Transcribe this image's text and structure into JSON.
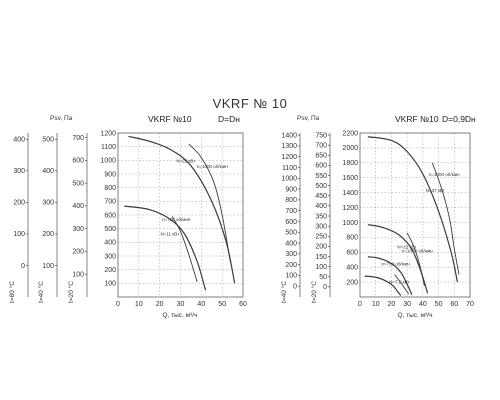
{
  "page": {
    "title": "VKRF № 10"
  },
  "chart_data": [
    {
      "type": "line",
      "header": "VKRF №10",
      "variant": "D=Dн",
      "xlabel": "Q, тыс. м³/ч",
      "xlim": [
        0,
        60
      ],
      "xticks": [
        0,
        10,
        20,
        30,
        40,
        50,
        60
      ],
      "ylim": [
        0,
        1200
      ],
      "ytick_step": 100,
      "pressure_axis_label": "Psv, Па",
      "y_axes": [
        {
          "label": "t=20 °C",
          "ticks": [
            "100",
            "200",
            "300",
            "400",
            "500",
            "600",
            "700"
          ]
        },
        {
          "label": "t=40 °C",
          "ticks": [
            "100",
            "200",
            "300",
            "400",
            "500"
          ]
        },
        {
          "label": "t=80 °C",
          "ticks": [
            "0",
            "100",
            "200",
            "300",
            "400"
          ]
        }
      ],
      "series": [
        {
          "name": "n=1000 об/мин",
          "x": [
            5,
            15,
            25,
            35,
            45,
            52,
            56
          ],
          "y": [
            1175,
            1140,
            1080,
            960,
            700,
            400,
            100
          ]
        },
        {
          "name": "n=750 об/мин",
          "x": [
            3,
            15,
            25,
            32,
            38,
            42
          ],
          "y": [
            665,
            640,
            570,
            460,
            260,
            50
          ]
        }
      ],
      "power_curves": [
        {
          "name": "N=22 кВт",
          "x": [
            34,
            40,
            46,
            50,
            54
          ],
          "y": [
            1120,
            1020,
            840,
            600,
            250
          ]
        },
        {
          "name": "N=11 кВт",
          "x": [
            26,
            30,
            34,
            38
          ],
          "y": [
            590,
            480,
            310,
            110
          ]
        }
      ]
    },
    {
      "type": "line",
      "header": "VKRF №10",
      "variant": "D=0,9Dн",
      "xlabel": "Q, тыс. м³/ч",
      "xlim": [
        0,
        70
      ],
      "xticks": [
        0,
        10,
        20,
        30,
        40,
        50,
        60,
        70
      ],
      "ylim": [
        0,
        2200
      ],
      "ytick_step": 200,
      "pressure_axis_label": "Psv, Па",
      "y_axes": [
        {
          "label": "t=20 °C",
          "ticks": [
            "0",
            "50",
            "100",
            "150",
            "200",
            "250",
            "300",
            "350",
            "400",
            "450",
            "500",
            "550",
            "600",
            "650",
            "700",
            "750"
          ]
        },
        {
          "label": "t=40 °C",
          "ticks": [
            "0",
            "100",
            "200",
            "300",
            "400",
            "500",
            "600",
            "700",
            "800",
            "900",
            "1000",
            "1100",
            "1200",
            "1300",
            "1400"
          ]
        }
      ],
      "series": [
        {
          "name": "n=1000 об/мин",
          "x": [
            5,
            20,
            30,
            40,
            50,
            58,
            62
          ],
          "y": [
            2150,
            2100,
            1950,
            1650,
            1150,
            600,
            200
          ]
        },
        {
          "name": "n=1000 об/мин",
          "x": [
            5,
            15,
            25,
            33,
            39,
            43
          ],
          "y": [
            970,
            930,
            830,
            640,
            330,
            50
          ]
        },
        {
          "name": "n=750 об/мин",
          "x": [
            5,
            12,
            20,
            26,
            30,
            33
          ],
          "y": [
            540,
            520,
            450,
            330,
            170,
            30
          ]
        },
        {
          "name": "",
          "x": [
            3,
            10,
            16,
            21,
            24,
            26
          ],
          "y": [
            280,
            265,
            220,
            150,
            70,
            20
          ]
        }
      ],
      "power_curves": [
        {
          "name": "N=37 кВт",
          "x": [
            46,
            52,
            57,
            60,
            63
          ],
          "y": [
            1800,
            1450,
            1050,
            650,
            300
          ]
        },
        {
          "name": "N=22 кВт",
          "x": [
            30,
            34,
            38,
            41
          ],
          "y": [
            860,
            690,
            430,
            150
          ]
        },
        {
          "name": "N=7,5 кВт",
          "x": [
            22,
            25,
            28,
            31
          ],
          "y": [
            300,
            220,
            130,
            40
          ]
        }
      ]
    }
  ]
}
